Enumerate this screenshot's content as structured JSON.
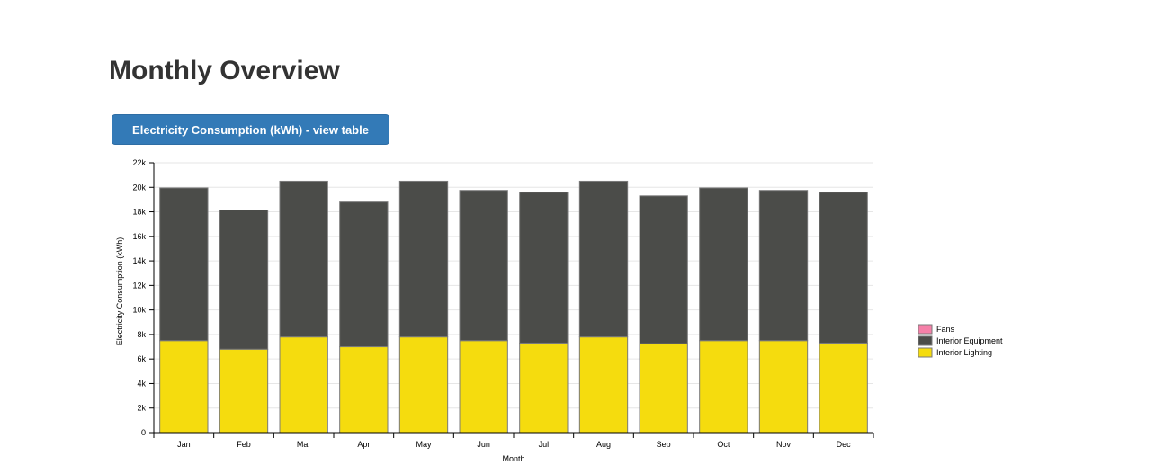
{
  "page": {
    "title": "Monthly Overview",
    "view_table_button": "Electricity Consumption (kWh) - view table"
  },
  "chart_data": {
    "type": "bar",
    "stacked": true,
    "title": "",
    "xlabel": "Month",
    "ylabel": "Electricity Consumption (kWh)",
    "ylim": [
      0,
      22000
    ],
    "yticks": [
      0,
      2000,
      4000,
      6000,
      8000,
      10000,
      12000,
      14000,
      16000,
      18000,
      20000,
      22000
    ],
    "ytick_labels": [
      "0",
      "2k",
      "4k",
      "6k",
      "8k",
      "10k",
      "12k",
      "14k",
      "16k",
      "18k",
      "20k",
      "22k"
    ],
    "grid": true,
    "legend_position": "right",
    "categories": [
      "Jan",
      "Feb",
      "Mar",
      "Apr",
      "May",
      "Jun",
      "Jul",
      "Aug",
      "Sep",
      "Oct",
      "Nov",
      "Dec"
    ],
    "series": [
      {
        "name": "Interior Lighting",
        "color": "#f5dc0e",
        "values": [
          7500,
          6800,
          7800,
          7000,
          7800,
          7500,
          7300,
          7800,
          7250,
          7500,
          7500,
          7300
        ]
      },
      {
        "name": "Interior Equipment",
        "color": "#4b4c49",
        "values": [
          12450,
          11350,
          12700,
          11800,
          12700,
          12250,
          12300,
          12700,
          12050,
          12450,
          12250,
          12300
        ]
      },
      {
        "name": "Fans",
        "color": "#f580a8",
        "values": [
          0,
          0,
          0,
          0,
          0,
          0,
          0,
          0,
          0,
          0,
          0,
          0
        ]
      }
    ],
    "legend_order": [
      "Fans",
      "Interior Equipment",
      "Interior Lighting"
    ]
  }
}
